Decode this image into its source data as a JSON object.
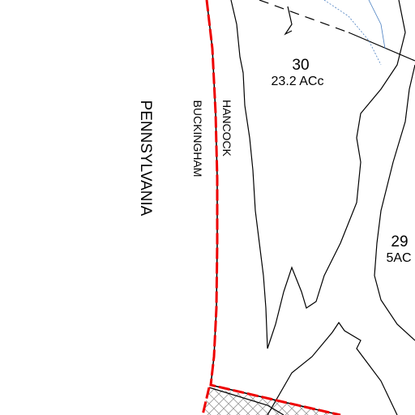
{
  "parcels": [
    {
      "number": "30",
      "area": "23.2 ACc"
    },
    {
      "number": "29",
      "area": "5AC"
    }
  ],
  "state_label": "PENNSYLVANIA",
  "township_labels": [
    "HANCOCK",
    "BUCKINGHAM"
  ]
}
